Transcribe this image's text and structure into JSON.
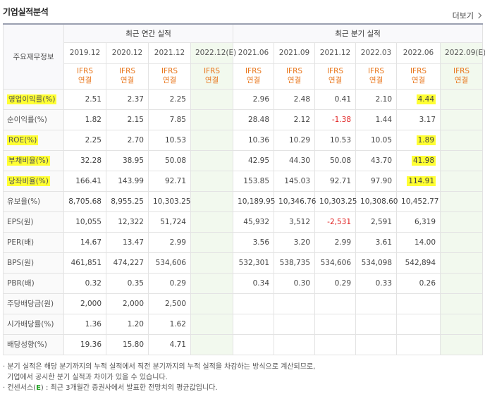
{
  "title": "기업실적분석",
  "more_label": "더보기",
  "row_header": "주요재무정보",
  "groups": {
    "annual": "최근 연간 실적",
    "quarter": "최근 분기 실적"
  },
  "annual_periods": [
    "2019.12",
    "2020.12",
    "2021.12",
    "2022.12(E)"
  ],
  "quarter_periods": [
    "2021.06",
    "2021.09",
    "2021.12",
    "2022.03",
    "2022.06",
    "2022.09(E)"
  ],
  "ifrs": [
    "IFRS",
    "연결"
  ],
  "highlight_color": "#ffff33",
  "rows": [
    {
      "label": "영업이익률(%)",
      "highlight": true,
      "annual": [
        "2.51",
        "2.37",
        "2.25",
        ""
      ],
      "quarter": [
        "2.96",
        "2.48",
        "0.41",
        "2.10",
        "4.44",
        ""
      ],
      "hl_quarter": [
        4
      ]
    },
    {
      "label": "순이익률(%)",
      "annual": [
        "1.82",
        "2.15",
        "7.85",
        ""
      ],
      "quarter": [
        "28.48",
        "2.12",
        "-1.38",
        "1.44",
        "3.17",
        ""
      ],
      "neg_quarter": [
        2
      ]
    },
    {
      "label": "ROE(%)",
      "highlight": true,
      "annual": [
        "2.25",
        "2.70",
        "10.53",
        ""
      ],
      "quarter": [
        "10.36",
        "10.29",
        "10.53",
        "10.05",
        "1.89",
        ""
      ],
      "hl_quarter": [
        4
      ]
    },
    {
      "label": "부채비율(%)",
      "highlight": true,
      "annual": [
        "32.28",
        "38.95",
        "50.08",
        ""
      ],
      "quarter": [
        "42.95",
        "44.30",
        "50.08",
        "43.70",
        "41.98",
        ""
      ],
      "hl_quarter": [
        4
      ],
      "section_top": true
    },
    {
      "label": "당좌비율(%)",
      "highlight": true,
      "annual": [
        "166.41",
        "143.99",
        "92.71",
        ""
      ],
      "quarter": [
        "153.85",
        "145.03",
        "92.71",
        "97.90",
        "114.91",
        ""
      ],
      "hl_quarter": [
        4
      ]
    },
    {
      "label": "유보율(%)",
      "annual": [
        "8,705.68",
        "8,955.25",
        "10,303.25",
        ""
      ],
      "quarter": [
        "10,189.95",
        "10,346.76",
        "10,303.25",
        "10,308.60",
        "10,452.77",
        ""
      ]
    },
    {
      "label": "EPS(원)",
      "annual": [
        "10,055",
        "12,322",
        "51,724",
        ""
      ],
      "quarter": [
        "45,932",
        "3,512",
        "-2,531",
        "2,591",
        "6,319",
        ""
      ],
      "neg_quarter": [
        2
      ],
      "section_top": true
    },
    {
      "label": "PER(배)",
      "annual": [
        "14.67",
        "13.47",
        "2.99",
        ""
      ],
      "quarter": [
        "3.56",
        "3.20",
        "2.99",
        "3.61",
        "14.00",
        ""
      ]
    },
    {
      "label": "BPS(원)",
      "annual": [
        "461,851",
        "474,227",
        "534,606",
        ""
      ],
      "quarter": [
        "532,301",
        "538,735",
        "534,606",
        "534,098",
        "542,894",
        ""
      ]
    },
    {
      "label": "PBR(배)",
      "annual": [
        "0.32",
        "0.35",
        "0.29",
        ""
      ],
      "quarter": [
        "0.34",
        "0.30",
        "0.29",
        "0.33",
        "0.26",
        ""
      ]
    },
    {
      "label": "주당배당금(원)",
      "annual": [
        "2,000",
        "2,000",
        "2,500",
        ""
      ],
      "quarter": [
        "",
        "",
        "",
        "",
        "",
        ""
      ],
      "section_top": true
    },
    {
      "label": "시가배당률(%)",
      "annual": [
        "1.36",
        "1.20",
        "1.62",
        ""
      ],
      "quarter": [
        "",
        "",
        "",
        "",
        "",
        ""
      ]
    },
    {
      "label": "배당성향(%)",
      "annual": [
        "19.36",
        "15.80",
        "4.71",
        ""
      ],
      "quarter": [
        "",
        "",
        "",
        "",
        "",
        ""
      ]
    }
  ],
  "notes": {
    "line1": "· 분기 실적은 해당 분기까지의 누적 실적에서 직전 분기까지의 누적 실적을 차감하는 방식으로 계산되므로,",
    "line2": "기업에서 공시한 분기 실적과 차이가 있을 수 있습니다.",
    "line3_prefix": "· 컨센서스(",
    "line3_e": "E",
    "line3_suffix": ") : 최근 3개월간 증권사에서 발표한 전망치의 평균값입니다."
  }
}
